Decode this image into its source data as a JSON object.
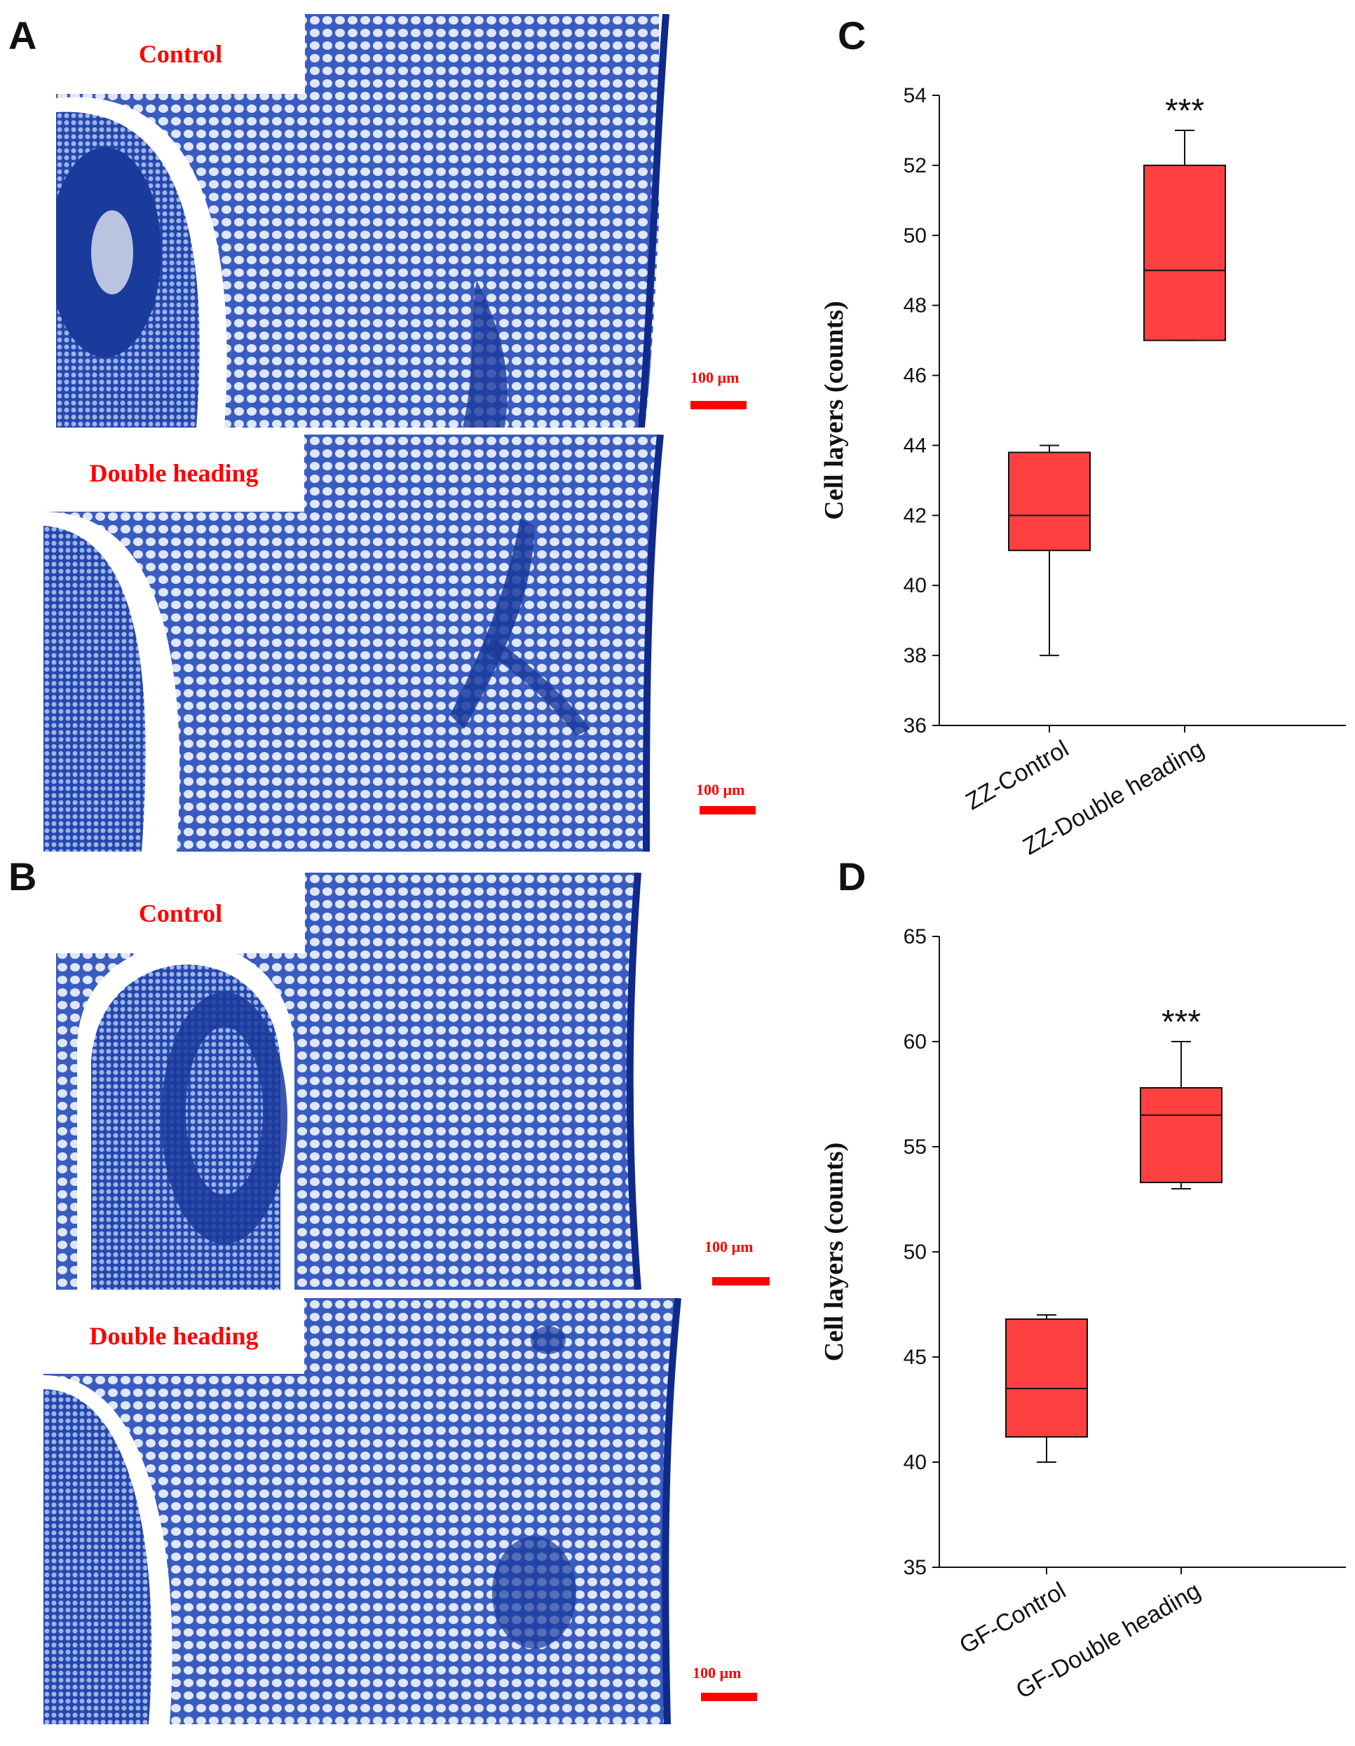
{
  "panels": {
    "A": {
      "letter": "A",
      "top": {
        "label": "Control",
        "scale": "100 µm"
      },
      "bottom": {
        "label": "Double heading",
        "scale": "100 µm"
      }
    },
    "B": {
      "letter": "B",
      "top": {
        "label": "Control",
        "scale": "100 µm"
      },
      "bottom": {
        "label": "Double heading",
        "scale": "100 µm"
      }
    },
    "C": {
      "letter": "C"
    },
    "D": {
      "letter": "D"
    }
  },
  "colors": {
    "box_fill": "#ff4040",
    "label_red": "#ff0000",
    "stain_dark": "#1a3a9c",
    "stain_light": "#c9d6f0"
  },
  "chart_data": [
    {
      "type": "box",
      "panel": "C",
      "ylabel": "Cell layers (counts)",
      "ylim": [
        36,
        54
      ],
      "yticks": [
        "36",
        "38",
        "40",
        "42",
        "44",
        "46",
        "48",
        "50",
        "52",
        "54"
      ],
      "categories": [
        "ZZ-Control",
        "ZZ-Double heading"
      ],
      "boxes": [
        {
          "min": 38,
          "q1": 41,
          "median": 42,
          "q3": 43.8,
          "max": 44
        },
        {
          "min": 47,
          "q1": 47,
          "median": 49,
          "q3": 52,
          "max": 53
        }
      ],
      "annotation": "***",
      "annotation_category": 1
    },
    {
      "type": "box",
      "panel": "D",
      "ylabel": "Cell layers (counts)",
      "ylim": [
        35,
        65
      ],
      "yticks": [
        "35",
        "40",
        "45",
        "50",
        "55",
        "60",
        "65"
      ],
      "categories": [
        "GF-Control",
        "GF-Double heading"
      ],
      "boxes": [
        {
          "min": 40,
          "q1": 41.2,
          "median": 43.5,
          "q3": 46.8,
          "max": 47
        },
        {
          "min": 53,
          "q1": 53.3,
          "median": 56.5,
          "q3": 57.8,
          "max": 60
        }
      ],
      "annotation": "***",
      "annotation_category": 1
    }
  ]
}
